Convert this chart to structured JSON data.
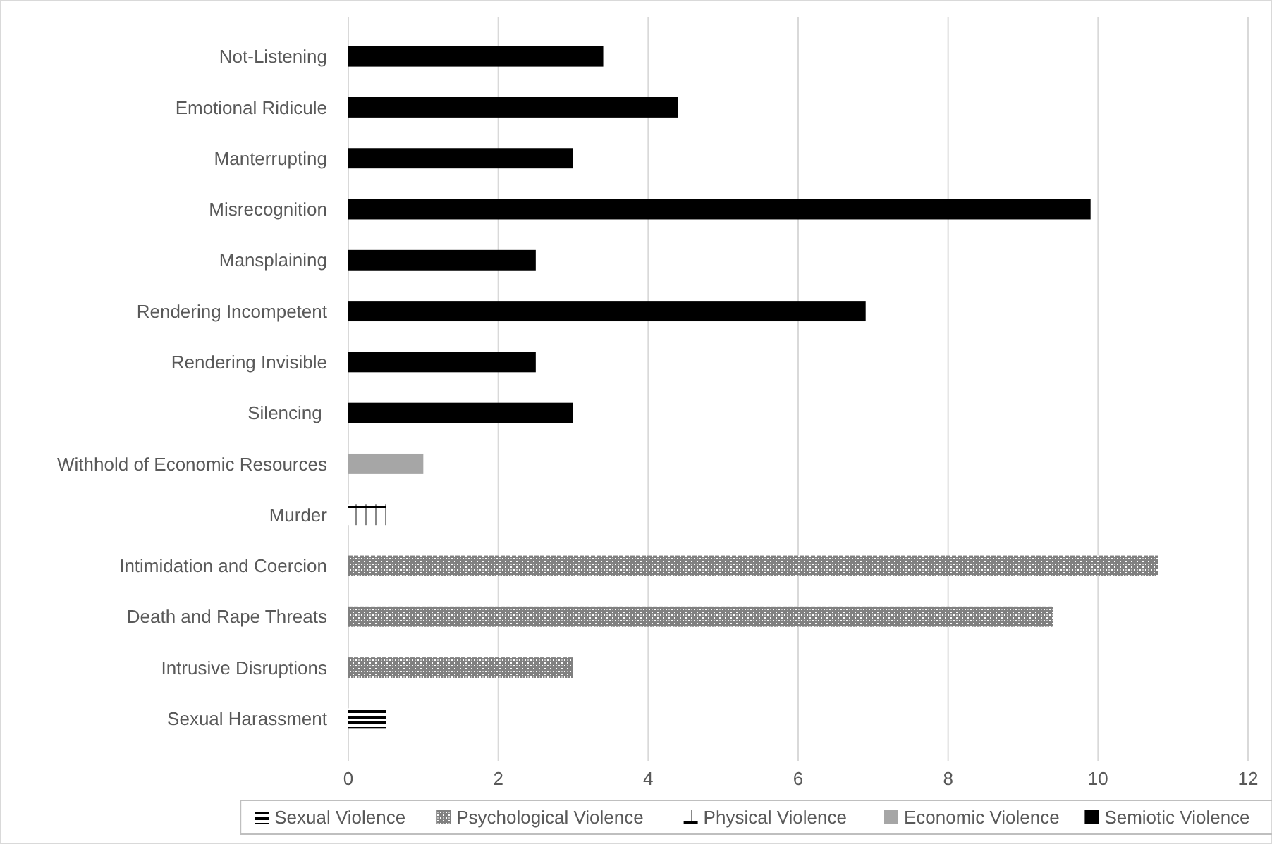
{
  "chart_data": {
    "type": "bar",
    "orientation": "horizontal",
    "categories": [
      "Not-Listening",
      "Emotional Ridicule",
      "Manterrupting",
      "Misrecognition",
      "Mansplaining",
      "Rendering Incompetent",
      "Rendering Invisible",
      "Silencing ",
      "Withhold of Economic Resources",
      "Murder",
      "Intimidation and Coercion",
      "Death and Rape Threats",
      "Intrusive Disruptions",
      "Sexual Harassment"
    ],
    "series": [
      {
        "name": "Sexual Violence",
        "color": "#000000",
        "values": [
          null,
          null,
          null,
          null,
          null,
          null,
          null,
          null,
          null,
          null,
          null,
          null,
          null,
          0.5
        ]
      },
      {
        "name": "Psychological Violence",
        "color": "#808080",
        "values": [
          null,
          null,
          null,
          null,
          null,
          null,
          null,
          null,
          null,
          null,
          10.8,
          9.4,
          3.0,
          null
        ]
      },
      {
        "name": "Physical Violence",
        "color": "#000000",
        "values": [
          null,
          null,
          null,
          null,
          null,
          null,
          null,
          null,
          null,
          0.5,
          null,
          null,
          null,
          null
        ]
      },
      {
        "name": "Economic Violence",
        "color": "#a6a6a6",
        "values": [
          null,
          null,
          null,
          null,
          null,
          null,
          null,
          null,
          1.0,
          null,
          null,
          null,
          null,
          null
        ]
      },
      {
        "name": "Semiotic Violence",
        "color": "#000000",
        "values": [
          3.4,
          4.4,
          3.0,
          9.9,
          2.5,
          6.9,
          2.5,
          3.0,
          null,
          null,
          null,
          null,
          null,
          null
        ]
      }
    ],
    "xlim": [
      0,
      12
    ],
    "xticks": [
      0,
      2,
      4,
      6,
      8,
      10,
      12
    ],
    "grid": "x",
    "legend": "bottom"
  }
}
